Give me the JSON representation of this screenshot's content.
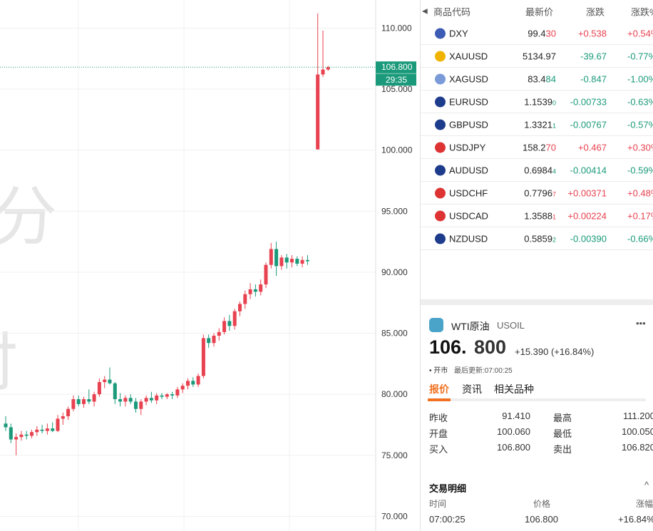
{
  "chart": {
    "watermark": [
      "分",
      "时"
    ],
    "yticks": [
      {
        "value": 70,
        "label": "70.000"
      },
      {
        "value": 75,
        "label": "75.000"
      },
      {
        "value": 80,
        "label": "80.000"
      },
      {
        "value": 85,
        "label": "85.000"
      },
      {
        "value": 90,
        "label": "90.000"
      },
      {
        "value": 95,
        "label": "95.000"
      },
      {
        "value": 100,
        "label": "100.000"
      },
      {
        "value": 105,
        "label": "105.000"
      },
      {
        "value": 110,
        "label": "110.000"
      }
    ],
    "ylim": [
      68.8,
      112.3
    ],
    "last": {
      "value": 106.8,
      "label": "106.800"
    },
    "countdown": "29:35",
    "candles": [
      [
        77.6,
        78.2,
        77.0,
        77.3
      ],
      [
        77.3,
        77.6,
        76.0,
        76.3
      ],
      [
        76.3,
        76.8,
        75.0,
        76.5
      ],
      [
        76.5,
        77.0,
        76.2,
        76.7
      ],
      [
        76.7,
        77.0,
        76.3,
        76.6
      ],
      [
        76.6,
        77.1,
        76.4,
        76.9
      ],
      [
        76.9,
        77.4,
        76.6,
        77.1
      ],
      [
        77.1,
        77.5,
        76.8,
        77.0
      ],
      [
        77.0,
        77.6,
        76.7,
        77.2
      ],
      [
        77.2,
        77.7,
        76.9,
        77.0
      ],
      [
        77.0,
        78.3,
        76.9,
        78.0
      ],
      [
        78.0,
        78.5,
        77.5,
        78.2
      ],
      [
        78.2,
        79.0,
        77.9,
        78.8
      ],
      [
        78.8,
        79.9,
        78.6,
        79.6
      ],
      [
        79.6,
        79.9,
        79.0,
        79.2
      ],
      [
        79.2,
        79.8,
        78.9,
        79.6
      ],
      [
        79.6,
        80.4,
        79.2,
        79.4
      ],
      [
        79.4,
        80.2,
        79.0,
        80.0
      ],
      [
        80.0,
        81.3,
        79.8,
        81.0
      ],
      [
        81.0,
        81.5,
        80.5,
        81.2
      ],
      [
        81.2,
        82.2,
        80.8,
        80.9
      ],
      [
        80.9,
        81.0,
        79.2,
        79.6
      ],
      [
        79.6,
        80.1,
        79.0,
        79.4
      ],
      [
        79.4,
        79.9,
        79.0,
        79.7
      ],
      [
        79.7,
        80.0,
        79.2,
        79.4
      ],
      [
        79.4,
        79.7,
        78.5,
        78.8
      ],
      [
        78.8,
        79.6,
        78.3,
        79.4
      ],
      [
        79.4,
        79.9,
        79.1,
        79.7
      ],
      [
        79.7,
        80.2,
        79.3,
        79.5
      ],
      [
        79.5,
        80.1,
        79.2,
        79.9
      ],
      [
        79.9,
        80.1,
        79.6,
        79.8
      ],
      [
        79.8,
        80.1,
        79.6,
        80.0
      ],
      [
        80.0,
        80.2,
        79.6,
        79.9
      ],
      [
        79.9,
        80.6,
        79.7,
        80.4
      ],
      [
        80.4,
        80.9,
        80.1,
        80.7
      ],
      [
        80.7,
        81.3,
        80.4,
        81.1
      ],
      [
        81.1,
        81.4,
        80.6,
        80.8
      ],
      [
        80.8,
        81.7,
        80.6,
        81.5
      ],
      [
        81.5,
        84.9,
        81.3,
        84.6
      ],
      [
        84.6,
        84.9,
        83.8,
        84.2
      ],
      [
        84.2,
        85.0,
        83.9,
        84.8
      ],
      [
        84.8,
        85.4,
        84.4,
        85.1
      ],
      [
        85.1,
        86.3,
        84.9,
        86.0
      ],
      [
        86.0,
        86.5,
        85.2,
        85.6
      ],
      [
        85.6,
        87.0,
        85.3,
        86.8
      ],
      [
        86.8,
        87.6,
        86.4,
        87.4
      ],
      [
        87.4,
        88.5,
        87.0,
        88.2
      ],
      [
        88.2,
        89.1,
        87.8,
        88.6
      ],
      [
        88.6,
        89.0,
        88.0,
        88.4
      ],
      [
        88.4,
        89.4,
        88.1,
        89.0
      ],
      [
        89.0,
        90.8,
        88.7,
        90.6
      ],
      [
        90.6,
        92.4,
        90.3,
        91.9
      ],
      [
        91.9,
        92.5,
        89.7,
        90.5
      ],
      [
        90.5,
        91.4,
        90.2,
        91.2
      ],
      [
        91.2,
        91.5,
        90.3,
        90.8
      ],
      [
        90.8,
        91.4,
        90.4,
        91.1
      ],
      [
        91.1,
        91.3,
        90.5,
        90.7
      ],
      [
        90.7,
        91.3,
        90.4,
        91.0
      ],
      [
        91.0,
        91.4,
        90.6,
        90.9
      ],
      [
        100.06,
        111.2,
        100.05,
        106.2
      ],
      [
        106.2,
        109.8,
        106.0,
        106.6
      ],
      [
        106.6,
        106.9,
        106.5,
        106.8
      ]
    ]
  },
  "watchlist": {
    "headers": [
      "商品代码",
      "最新价",
      "涨跌",
      "涨跌%"
    ],
    "rows": [
      {
        "symbol": "DXY",
        "price": "99.4",
        "tail": "30",
        "change": "+0.538",
        "pct": "+0.54%"
      },
      {
        "symbol": "XAUUSD",
        "price": "5134.97",
        "tail": "",
        "change": "-39.67",
        "pct": "-0.77%"
      },
      {
        "symbol": "XAGUSD",
        "price": "83.4",
        "tail": "84",
        "change": "-0.847",
        "pct": "-1.00%"
      },
      {
        "symbol": "EURUSD",
        "price": "1.1539",
        "tail": "0",
        "change": "-0.00733",
        "pct": "-0.63%"
      },
      {
        "symbol": "GBPUSD",
        "price": "1.3321",
        "tail": "1",
        "change": "-0.00767",
        "pct": "-0.57%"
      },
      {
        "symbol": "USDJPY",
        "price": "158.2",
        "tail": "70",
        "change": "+0.467",
        "pct": "+0.30%"
      },
      {
        "symbol": "AUDUSD",
        "price": "0.6984",
        "tail": "4",
        "change": "-0.00414",
        "pct": "-0.59%"
      },
      {
        "symbol": "USDCHF",
        "price": "0.7796",
        "tail": "7",
        "change": "+0.00371",
        "pct": "+0.48%"
      },
      {
        "symbol": "USDCAD",
        "price": "1.3588",
        "tail": "1",
        "change": "+0.00224",
        "pct": "+0.17%"
      },
      {
        "symbol": "NZDUSD",
        "price": "0.5859",
        "tail": "2",
        "change": "-0.00390",
        "pct": "-0.66%"
      }
    ]
  },
  "detail": {
    "name": "WTI原油",
    "code": "USOIL",
    "price_main": "106.",
    "price_tail": "800",
    "change": "+15.390 (+16.84%)",
    "status": "• 开市",
    "updated": "最后更新:07:00:25",
    "tabs": [
      "报价",
      "资讯",
      "相关品种"
    ],
    "stats": [
      [
        "昨收",
        "91.410",
        "最高",
        "111.200"
      ],
      [
        "开盘",
        "100.060",
        "最低",
        "100.050"
      ],
      [
        "买入",
        "106.800",
        "卖出",
        "106.820"
      ]
    ],
    "trades": {
      "title": "交易明细",
      "headers": [
        "时间",
        "价格",
        "涨幅"
      ],
      "rows": [
        [
          "07:00:25",
          "106.800",
          "+16.84%"
        ]
      ]
    }
  }
}
